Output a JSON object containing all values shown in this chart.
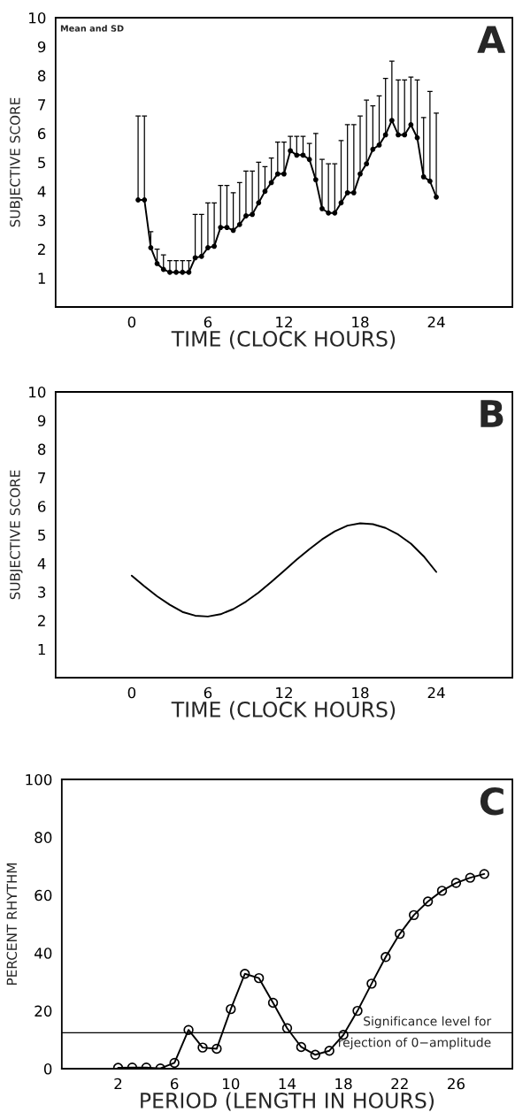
{
  "chart_data": [
    {
      "type": "line",
      "title": "A",
      "xlabel": "TIME (CLOCK HOURS)",
      "ylabel": "SUBJECTIVE SCORE",
      "annotations": [
        "Mean and SD"
      ],
      "marker": "circle",
      "line_style": "solid",
      "grid": false,
      "legend": false,
      "x": [
        0.5,
        1,
        1.5,
        2,
        2.5,
        3,
        3.5,
        4,
        4.5,
        5,
        5.5,
        6,
        6.5,
        7,
        7.5,
        8,
        8.5,
        9,
        9.5,
        10,
        10.5,
        11,
        11.5,
        12,
        12.5,
        13,
        13.5,
        14,
        14.5,
        15,
        15.5,
        16,
        16.5,
        17,
        17.5,
        18,
        18.5,
        19,
        19.5,
        20,
        20.5,
        21,
        21.5,
        22,
        22.5,
        23,
        23.5,
        24
      ],
      "series": [
        {
          "color": "#000000",
          "values": [
            3.7,
            3.7,
            2.05,
            1.5,
            1.3,
            1.2,
            1.2,
            1.2,
            1.2,
            1.7,
            1.75,
            2.05,
            2.1,
            2.75,
            2.75,
            2.65,
            2.85,
            3.15,
            3.2,
            3.6,
            4.0,
            4.3,
            4.6,
            4.6,
            5.4,
            5.25,
            5.25,
            5.1,
            4.4,
            3.4,
            3.25,
            3.25,
            3.6,
            3.95,
            3.95,
            4.6,
            4.95,
            5.45,
            5.6,
            5.95,
            6.45,
            5.95,
            5.95,
            6.3,
            5.85,
            4.5,
            4.35,
            3.8
          ],
          "errors": [
            [
              3.7,
              6.6
            ],
            [
              3.7,
              6.6
            ],
            [
              2.05,
              2.6
            ],
            [
              1.5,
              2.0
            ],
            [
              1.3,
              1.8
            ],
            [
              1.2,
              1.6
            ],
            [
              1.2,
              1.6
            ],
            [
              1.2,
              1.6
            ],
            [
              1.2,
              1.6
            ],
            [
              1.7,
              3.2
            ],
            [
              1.75,
              3.2
            ],
            [
              2.05,
              3.6
            ],
            [
              2.1,
              3.6
            ],
            [
              2.75,
              4.2
            ],
            [
              2.75,
              4.2
            ],
            [
              2.65,
              3.95
            ],
            [
              2.85,
              4.3
            ],
            [
              3.15,
              4.7
            ],
            [
              3.2,
              4.7
            ],
            [
              3.6,
              5.0
            ],
            [
              4.0,
              4.85
            ],
            [
              4.3,
              5.15
            ],
            [
              4.6,
              5.7
            ],
            [
              4.6,
              5.7
            ],
            [
              5.4,
              5.9
            ],
            [
              5.25,
              5.9
            ],
            [
              5.25,
              5.9
            ],
            [
              5.1,
              5.65
            ],
            [
              4.4,
              6.0
            ],
            [
              3.4,
              5.1
            ],
            [
              3.25,
              4.95
            ],
            [
              3.25,
              4.95
            ],
            [
              3.6,
              5.75
            ],
            [
              3.95,
              6.3
            ],
            [
              3.95,
              6.3
            ],
            [
              4.6,
              6.6
            ],
            [
              4.95,
              7.15
            ],
            [
              5.45,
              6.95
            ],
            [
              5.6,
              7.3
            ],
            [
              5.95,
              7.9
            ],
            [
              6.45,
              8.5
            ],
            [
              5.95,
              7.85
            ],
            [
              5.95,
              7.85
            ],
            [
              6.3,
              7.95
            ],
            [
              5.85,
              7.85
            ],
            [
              4.5,
              6.55
            ],
            [
              4.35,
              7.45
            ],
            [
              3.8,
              6.7
            ]
          ]
        }
      ],
      "xlim": [
        -6,
        30
      ],
      "xticks": [
        0,
        6,
        12,
        18,
        24
      ],
      "ylim": [
        0,
        10
      ],
      "yticks": [
        1,
        2,
        3,
        4,
        5,
        6,
        7,
        8,
        9,
        10
      ]
    },
    {
      "type": "line",
      "title": "B",
      "xlabel": "TIME (CLOCK HOURS)",
      "ylabel": "SUBJECTIVE SCORE",
      "marker": "none",
      "line_style": "solid",
      "grid": false,
      "legend": false,
      "x": [
        0,
        1,
        2,
        3,
        4,
        5,
        6,
        7,
        8,
        9,
        10,
        11,
        12,
        13,
        14,
        15,
        16,
        17,
        18,
        19,
        20,
        21,
        22,
        23,
        24
      ],
      "series": [
        {
          "color": "#000000",
          "values": [
            3.57,
            3.2,
            2.85,
            2.55,
            2.3,
            2.17,
            2.14,
            2.22,
            2.4,
            2.66,
            2.98,
            3.35,
            3.74,
            4.13,
            4.5,
            4.84,
            5.12,
            5.32,
            5.4,
            5.37,
            5.24,
            5.01,
            4.69,
            4.25,
            3.7
          ]
        }
      ],
      "xlim": [
        -6,
        30
      ],
      "xticks": [
        0,
        6,
        12,
        18,
        24
      ],
      "ylim": [
        0,
        10
      ],
      "yticks": [
        1,
        2,
        3,
        4,
        5,
        6,
        7,
        8,
        9,
        10
      ]
    },
    {
      "type": "line",
      "title": "C",
      "xlabel": "PERIOD (LENGTH IN HOURS)",
      "ylabel": "PERCENT RHYTHM",
      "marker": "circle",
      "line_style": "solid",
      "grid": false,
      "legend": false,
      "x": [
        2,
        3,
        4,
        5,
        6,
        7,
        8,
        9,
        10,
        11,
        12,
        13,
        14,
        15,
        16,
        17,
        18,
        19,
        20,
        21,
        22,
        23,
        24,
        25,
        26,
        27,
        28
      ],
      "series": [
        {
          "color": "#000000",
          "values": [
            0.3,
            0.4,
            0.4,
            0.1,
            2,
            13.4,
            7.3,
            6.9,
            20.6,
            32.8,
            31.3,
            22.8,
            14,
            7.5,
            4.8,
            6.2,
            11.7,
            20,
            29.4,
            38.6,
            46.6,
            53.1,
            57.8,
            61.5,
            64.2,
            66,
            67.3
          ]
        }
      ],
      "ref_lines": [
        {
          "axis": "y",
          "value": 12.4,
          "label": "Significance level for\nrejection of 0−amplitude",
          "color": "#000000",
          "line_style": "solid"
        }
      ],
      "xlim": [
        -2,
        30
      ],
      "xticks": [
        2,
        6,
        10,
        14,
        18,
        22,
        26
      ],
      "ylim": [
        0,
        100
      ],
      "yticks": [
        0,
        20,
        40,
        60,
        80,
        100
      ]
    }
  ]
}
